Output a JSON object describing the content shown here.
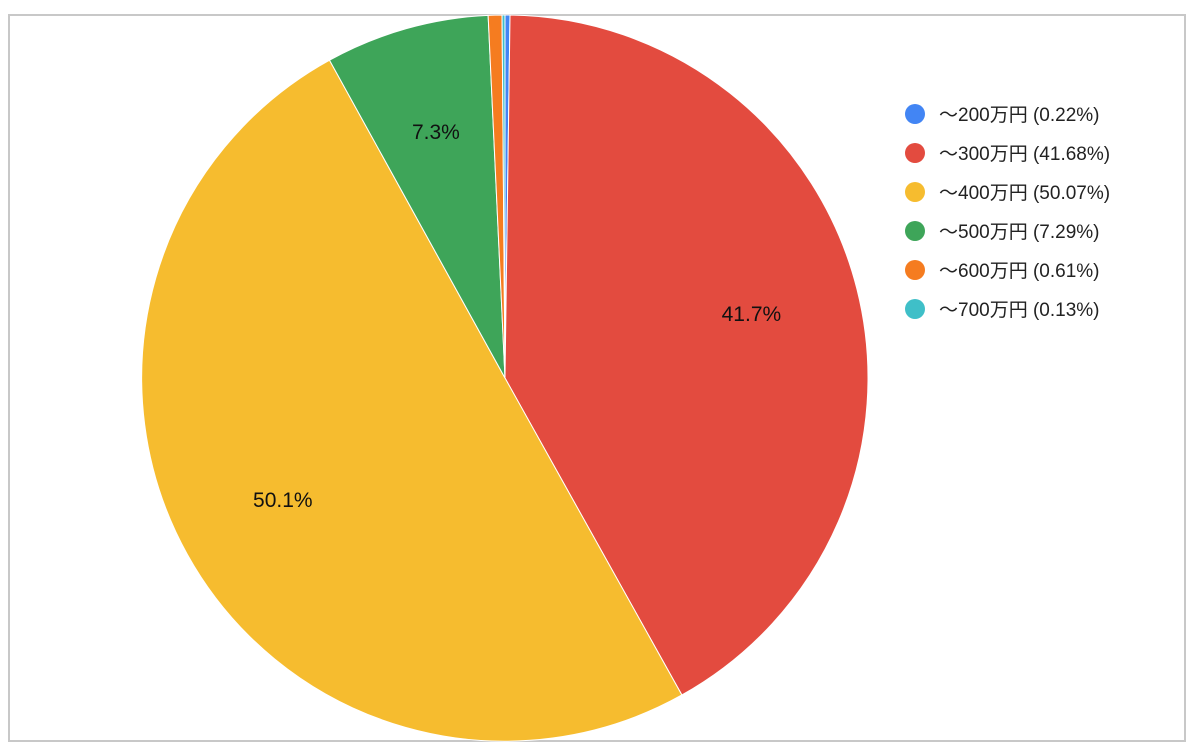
{
  "chart_data": {
    "type": "pie",
    "title": "",
    "slices": [
      {
        "name": "〜200万円",
        "value": 0.22,
        "legend_label": "〜200万円 (0.22%)",
        "slice_label": "",
        "color": "#4285f4"
      },
      {
        "name": "〜300万円",
        "value": 41.68,
        "legend_label": "〜300万円 (41.68%)",
        "slice_label": "41.7%",
        "color": "#e34b3f"
      },
      {
        "name": "〜400万円",
        "value": 50.07,
        "legend_label": "〜400万円 (50.07%)",
        "slice_label": "50.1%",
        "color": "#f6bc2f"
      },
      {
        "name": "〜500万円",
        "value": 7.29,
        "legend_label": "〜500万円 (7.29%)",
        "slice_label": "7.3%",
        "color": "#3ea559"
      },
      {
        "name": "〜600万円",
        "value": 0.61,
        "legend_label": "〜600万円 (0.61%)",
        "slice_label": "",
        "color": "#f57c20"
      },
      {
        "name": "〜700万円",
        "value": 0.13,
        "legend_label": "〜700万円 (0.13%)",
        "slice_label": "",
        "color": "#3fbfc8"
      }
    ],
    "legend_position": "right",
    "start_angle": "top",
    "direction": "clockwise"
  }
}
